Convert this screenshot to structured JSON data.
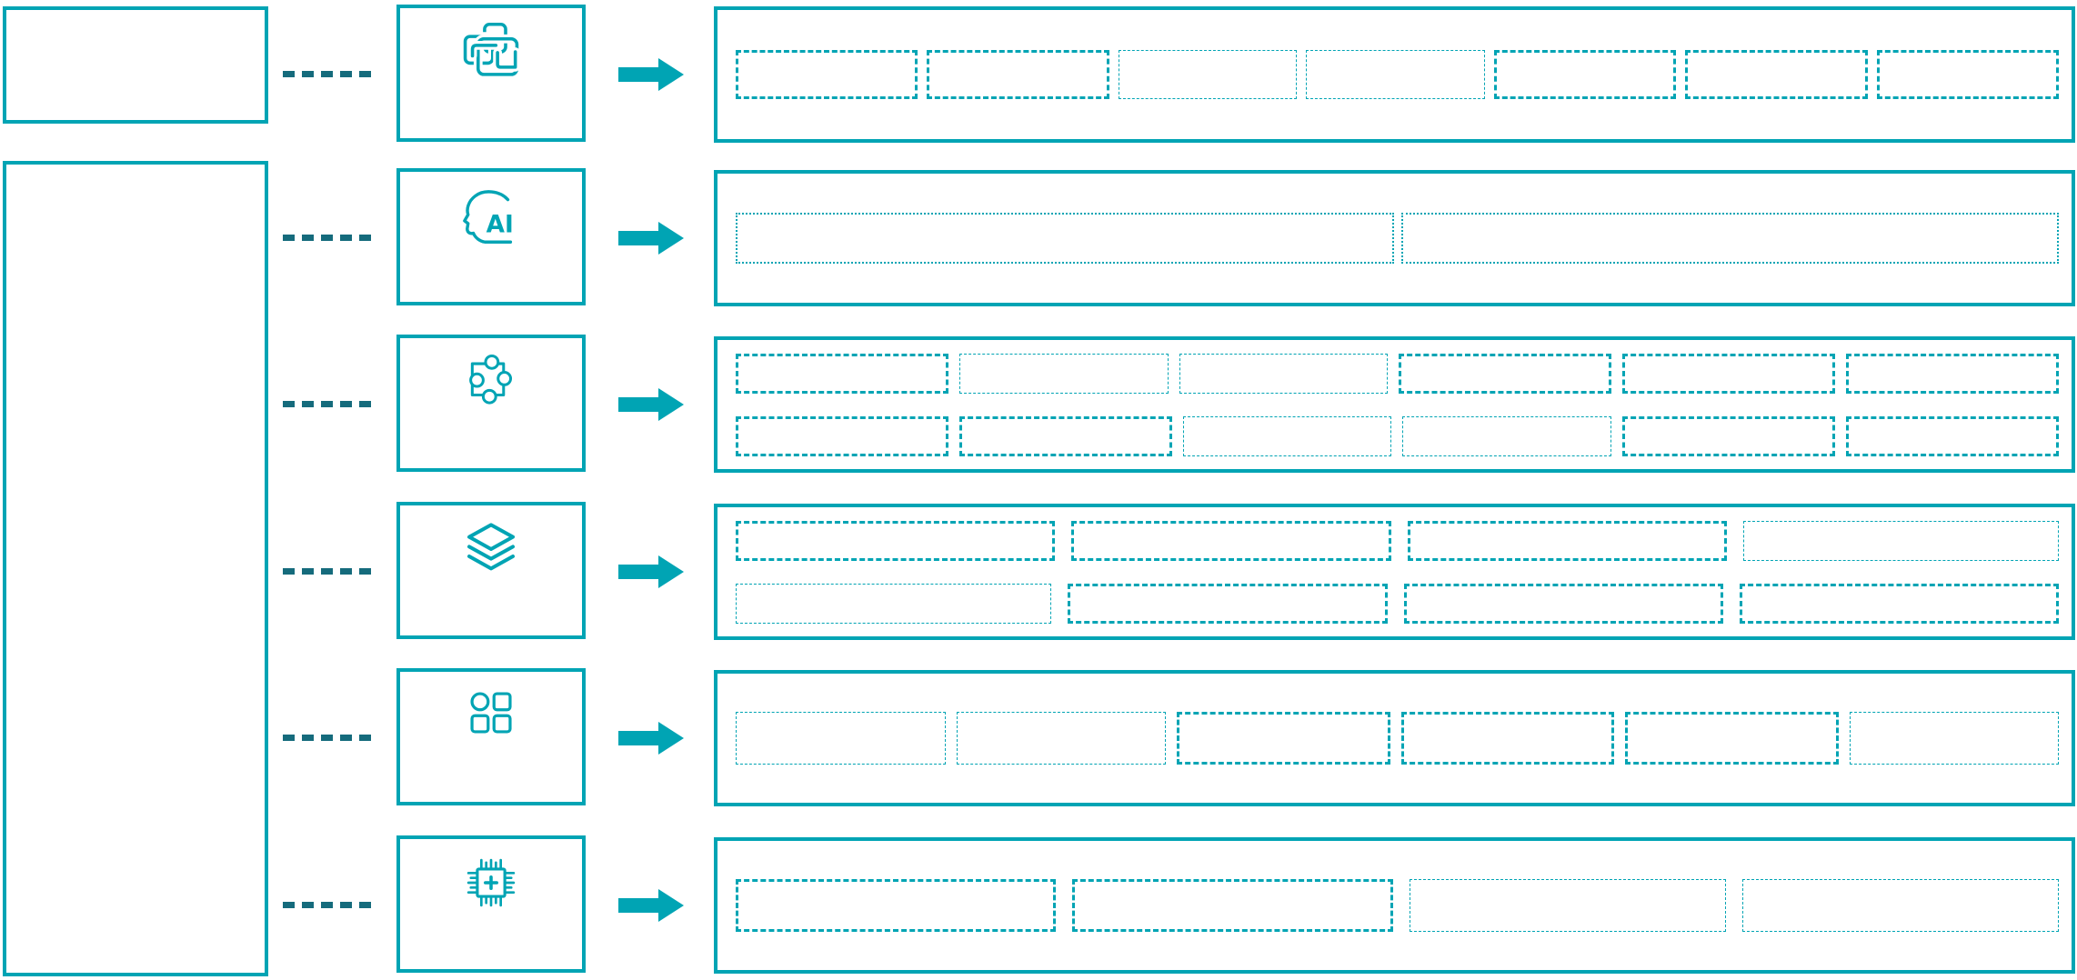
{
  "diagram": {
    "background": "#FFFFFF",
    "colors": {
      "primary": "#00A4B4",
      "connector_dash": "#156B7C"
    },
    "left_column": {
      "boxes": [
        {
          "name": "top-box",
          "text": ""
        },
        {
          "name": "tall-box",
          "text": ""
        }
      ]
    },
    "rows": [
      {
        "icon": "overlapping-windows-icon",
        "icon_text": "",
        "slot_rows": 1,
        "slot_cols": 7
      },
      {
        "icon": "ai-head-icon",
        "icon_text": "AI",
        "slot_rows": 1,
        "slot_cols": 2
      },
      {
        "icon": "puzzle-piece-icon",
        "icon_text": "",
        "slot_rows": 2,
        "slot_cols": 6
      },
      {
        "icon": "layers-icon",
        "icon_text": "",
        "slot_rows": 2,
        "slot_cols": 4
      },
      {
        "icon": "app-grid-icon",
        "icon_text": "",
        "slot_rows": 1,
        "slot_cols": 6
      },
      {
        "icon": "chip-icon",
        "icon_text": "",
        "slot_rows": 1,
        "slot_cols": 4
      }
    ]
  }
}
